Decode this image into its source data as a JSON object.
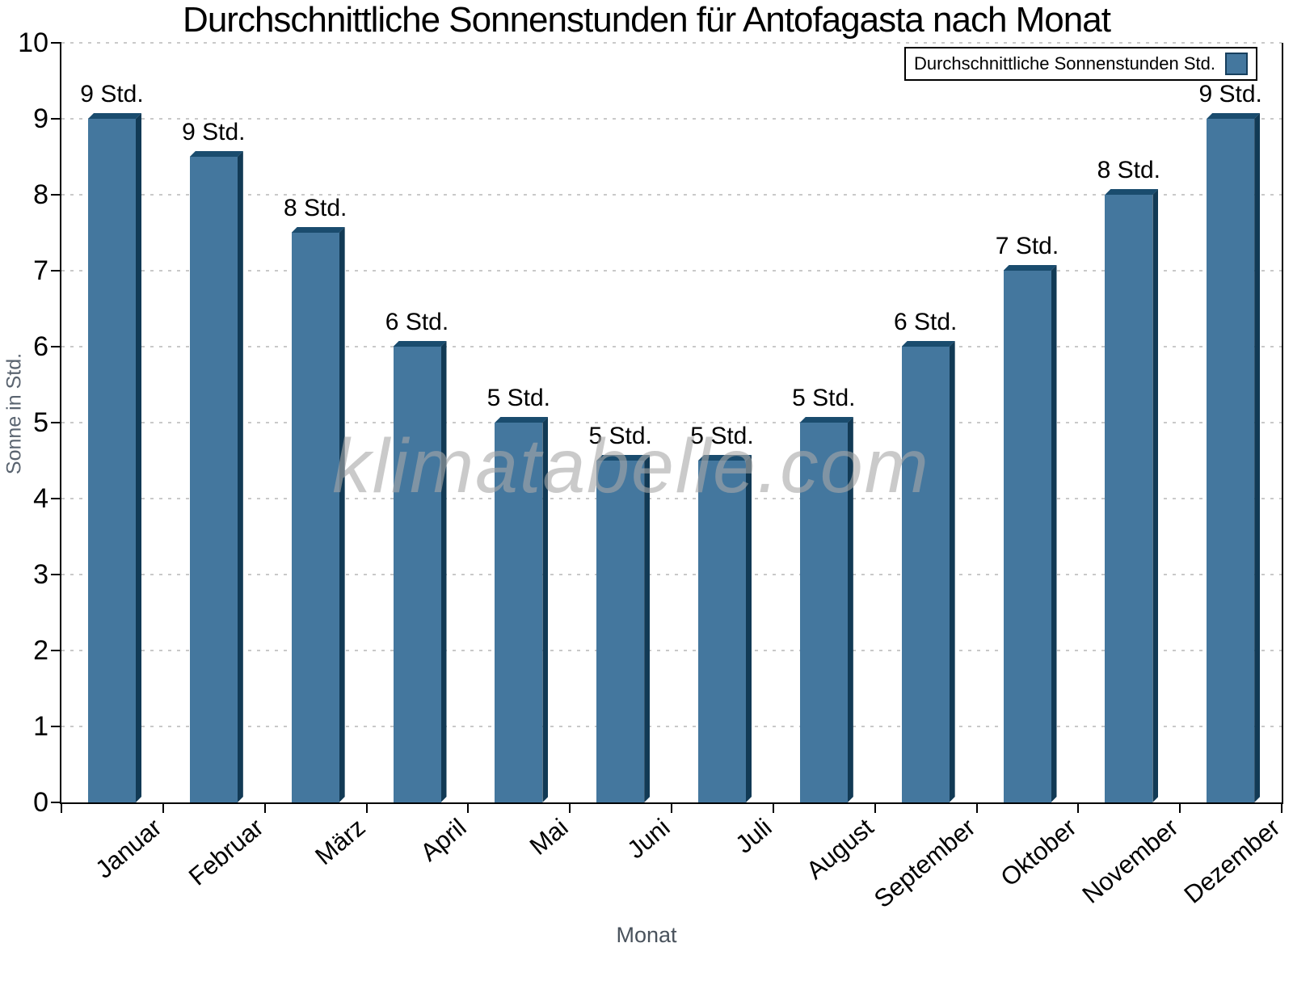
{
  "title": "Durchschnittliche Sonnenstunden für Antofagasta nach Monat",
  "legend": {
    "label": "Durchschnittliche Sonnenstunden Std."
  },
  "watermark": "klimatabelle.com",
  "chart_data": {
    "type": "bar",
    "title": "Durchschnittliche Sonnenstunden für Antofagasta nach Monat",
    "xlabel": "Monat",
    "ylabel": "Sonne in Std.",
    "categories": [
      "Januar",
      "Februar",
      "März",
      "April",
      "Mai",
      "Juni",
      "Juli",
      "August",
      "September",
      "Oktober",
      "November",
      "Dezember"
    ],
    "values": [
      9,
      8.5,
      7.5,
      6,
      5,
      4.5,
      4.5,
      5,
      6,
      7,
      8,
      9
    ],
    "bar_labels": [
      "9 Std.",
      "9 Std.",
      "8 Std.",
      "6 Std.",
      "5 Std.",
      "5 Std.",
      "5 Std.",
      "5 Std.",
      "6 Std.",
      "7 Std.",
      "8 Std.",
      "9 Std."
    ],
    "ylim": [
      0,
      10
    ],
    "yticks": [
      0,
      1,
      2,
      3,
      4,
      5,
      6,
      7,
      8,
      9,
      10
    ],
    "grid": "horizontal-dashed",
    "legend_position": "top-right",
    "legend_entries": [
      "Durchschnittliche Sonnenstunden Std."
    ],
    "colors": {
      "bar_face": "#44779e",
      "bar_top": "#1a4c6e",
      "bar_side": "#123a55",
      "grid": "#c9c9c9",
      "axis": "#000000",
      "axis_title": "#5a6470",
      "watermark": "#c4c4c4"
    }
  }
}
